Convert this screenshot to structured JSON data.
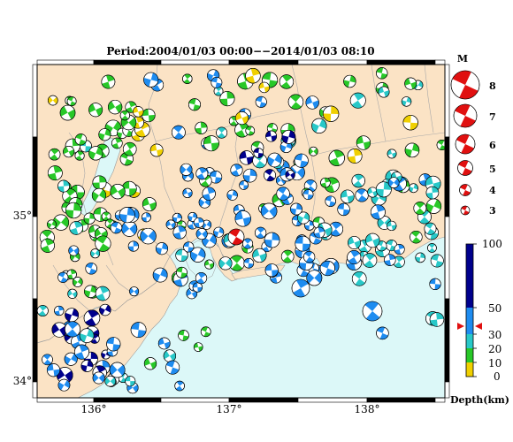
{
  "title": "Period:2004/01/03 00:00−−2014/01/03 08:10",
  "lon_ticks": [
    "136°",
    "137°",
    "138°"
  ],
  "lat_ticks": [
    "35°",
    "34°"
  ],
  "magnitude_legend": {
    "title": "M",
    "values": [
      "8",
      "7",
      "6",
      "5",
      "4",
      "3"
    ]
  },
  "depth_scale": {
    "label": "Depth(km)",
    "tick_labels": [
      "100",
      "50",
      "30",
      "20",
      "10",
      "0"
    ],
    "colors": {
      "0-10": "#f0d000",
      "10-20": "#28c828",
      "20-30": "#28c8c8",
      "30-50": "#1e8cf0",
      "50-100": "#00008c"
    }
  },
  "colors": {
    "land": "#fbe3c5",
    "sea": "#dcf8f8",
    "highlight": "#e01010"
  }
}
